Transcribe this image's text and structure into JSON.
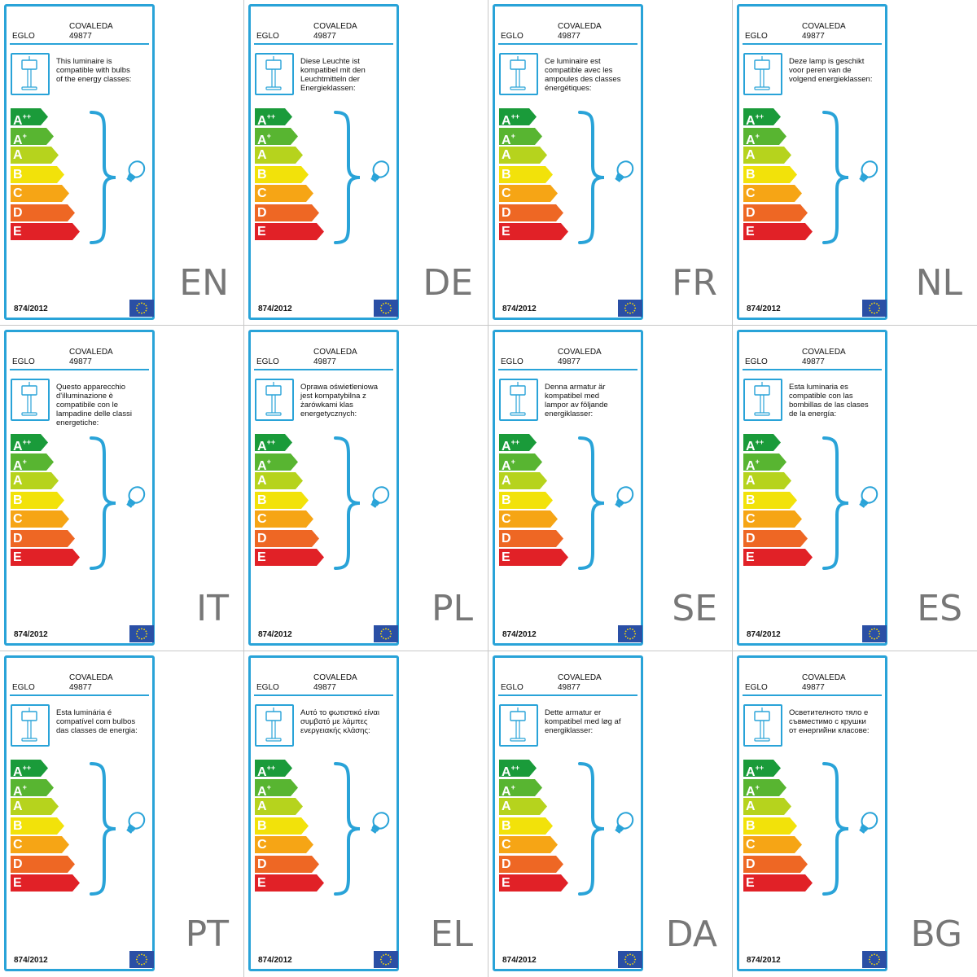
{
  "label_common": {
    "brand": "EGLO",
    "model_name": "COVALEDA",
    "model_number": "49877",
    "regulation": "874/2012",
    "classes": [
      {
        "letter": "A",
        "sup": "++",
        "color": "#1a9b3a",
        "length": 1.0
      },
      {
        "letter": "A",
        "sup": "+",
        "color": "#58b531",
        "length": 1.0
      },
      {
        "letter": "A",
        "sup": "",
        "color": "#b6d31d",
        "length": 1.0
      },
      {
        "letter": "B",
        "sup": "",
        "color": "#f2e20a",
        "length": 1.0
      },
      {
        "letter": "C",
        "sup": "",
        "color": "#f6a515",
        "length": 1.0
      },
      {
        "letter": "D",
        "sup": "",
        "color": "#ee6724",
        "length": 1.0
      },
      {
        "letter": "E",
        "sup": "",
        "color": "#e12127",
        "length": 1.0
      }
    ],
    "accent_color": "#29a3d8",
    "icons": [
      "lamp-icon",
      "brace-icon",
      "bulb-icon",
      "eu-flag-icon"
    ]
  },
  "labels": [
    {
      "lang": "EN",
      "text": [
        "This luminaire is",
        "compatible with bulbs",
        "of the energy classes:"
      ]
    },
    {
      "lang": "DE",
      "text": [
        "Diese Leuchte ist",
        "kompatibel mit den",
        "Leuchtmitteln der",
        "Energieklassen:"
      ]
    },
    {
      "lang": "FR",
      "text": [
        "Ce luminaire est",
        "compatible avec les",
        "ampoules des classes",
        "énergétiques:"
      ]
    },
    {
      "lang": "NL",
      "text": [
        "Deze lamp is geschikt",
        "voor peren van de",
        "volgend energieklassen:"
      ]
    },
    {
      "lang": "IT",
      "text": [
        "Questo apparecchio",
        "d'illuminazione è",
        "compatibile con le",
        "lampadine delle classi",
        "energetiche:"
      ]
    },
    {
      "lang": "PL",
      "text": [
        "Oprawa oświetleniowa",
        "jest kompatybilna z",
        "żarówkami klas",
        "energetycznych:"
      ]
    },
    {
      "lang": "SE",
      "text": [
        "Denna armatur är",
        "kompatibel med",
        "lampor av följande",
        "energiklasser:"
      ]
    },
    {
      "lang": "ES",
      "text": [
        "Esta luminaria es",
        "compatible con las",
        "bombillas de las clases",
        "de la energía:"
      ]
    },
    {
      "lang": "PT",
      "text": [
        "Esta luminária é",
        "compatível com bulbos",
        "das classes de energia:"
      ]
    },
    {
      "lang": "EL",
      "text": [
        "Αυτό το φωτιστικό είναι",
        "συμβατό με λάμπες",
        "ενεργειακής κλάσης:"
      ]
    },
    {
      "lang": "DA",
      "text": [
        "Dette armatur er",
        "kompatibel med løg af",
        "energiklasser:"
      ]
    },
    {
      "lang": "BG",
      "text": [
        "Осветителното тяло е",
        "съвместимо с крушки",
        "от енергийни класове:"
      ]
    }
  ]
}
